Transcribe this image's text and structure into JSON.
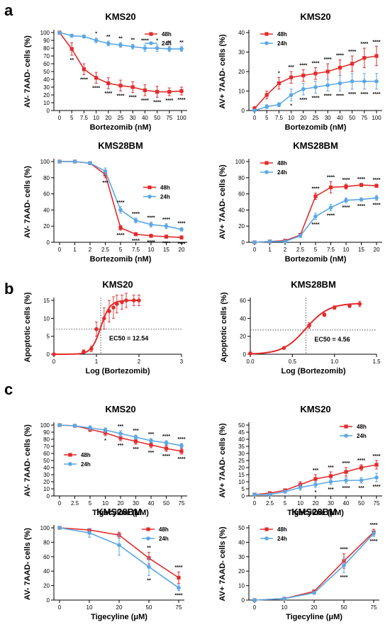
{
  "panel_labels": [
    "a",
    "b",
    "c"
  ],
  "colors": {
    "red": "#e32b2b",
    "blue": "#5aa7e6"
  },
  "chart_data": [
    {
      "id": "a1",
      "type": "line",
      "title": "KMS20",
      "xlabel": "Bortezomib (nM)",
      "ylabel": "AV- 7AAD- cells (%)",
      "categories": [
        "0",
        "5",
        "7.5",
        "10",
        "20",
        "25",
        "30",
        "40",
        "50",
        "75",
        "100"
      ],
      "ylim": [
        0,
        100
      ],
      "yticks": [
        0,
        10,
        20,
        30,
        40,
        50,
        60,
        70,
        80,
        90,
        100
      ],
      "legend": "top-right",
      "series": [
        {
          "name": "48h",
          "color": "red",
          "values": [
            100,
            79,
            53,
            42,
            35,
            32,
            30,
            26,
            24,
            24,
            25
          ],
          "err": [
            2,
            8,
            7,
            7,
            7,
            7,
            7,
            7,
            7,
            5,
            5
          ],
          "sig": [
            "",
            "**",
            "****",
            "****",
            "****",
            "****",
            "****",
            "****",
            "****",
            "****",
            "****"
          ],
          "sig_pos": "below"
        },
        {
          "name": "24h",
          "color": "blue",
          "values": [
            100,
            96,
            95,
            90,
            86,
            84,
            82,
            80,
            80,
            79,
            79
          ],
          "err": [
            1,
            2,
            2,
            3,
            3,
            3,
            3,
            4,
            4,
            3,
            3
          ],
          "sig": [
            "",
            "",
            "",
            "*",
            "**",
            "**",
            "**",
            "****",
            "*",
            "**",
            "**"
          ],
          "sig_pos": "above"
        }
      ]
    },
    {
      "id": "a2",
      "type": "line",
      "title": "KMS20",
      "xlabel": "Bortezomib (nM)",
      "ylabel": "AV+ 7AAD- cells (%)",
      "categories": [
        "0",
        "5",
        "7.5",
        "10",
        "20",
        "25",
        "30",
        "40",
        "50",
        "75",
        "100"
      ],
      "ylim": [
        0,
        40
      ],
      "yticks": [
        0,
        10,
        20,
        30,
        40
      ],
      "legend": "top-left",
      "series": [
        {
          "name": "48h",
          "color": "red",
          "values": [
            1,
            8,
            14,
            17,
            18,
            19,
            20,
            22,
            24,
            27,
            28
          ],
          "err": [
            1,
            2,
            3,
            3,
            3,
            3,
            4,
            4,
            4,
            5,
            5
          ],
          "sig": [
            "",
            "",
            "*",
            "***",
            "****",
            "****",
            "****",
            "****",
            "****",
            "****",
            "****"
          ],
          "sig_pos": "above"
        },
        {
          "name": "24h",
          "color": "blue",
          "values": [
            0,
            2,
            3,
            8,
            11,
            12,
            13,
            14,
            15,
            15,
            15
          ],
          "err": [
            0,
            1,
            1,
            3,
            3,
            3,
            3,
            4,
            4,
            4,
            4
          ],
          "sig": [
            "",
            "",
            "",
            "*",
            "****",
            "****",
            "****",
            "****",
            "****",
            "****",
            "****"
          ],
          "sig_pos": "below"
        }
      ]
    },
    {
      "id": "a3",
      "type": "line",
      "title": "KMS28BM",
      "xlabel": "Bortezomib (nM)",
      "ylabel": "AV- 7AAD- cells (%)",
      "categories": [
        "0",
        "1",
        "2",
        "2.5",
        "5",
        "7.5",
        "10",
        "15",
        "20"
      ],
      "ylim": [
        0,
        100
      ],
      "yticks": [
        0,
        20,
        40,
        60,
        80,
        100
      ],
      "legend": "mid-right",
      "series": [
        {
          "name": "48h",
          "color": "red",
          "values": [
            100,
            100,
            98,
            84,
            18,
            10,
            8,
            7,
            6
          ],
          "err": [
            1,
            1,
            2,
            4,
            3,
            2,
            2,
            2,
            2
          ],
          "sig": [
            "",
            "",
            "",
            "***",
            "****",
            "****",
            "****",
            "****",
            "****"
          ],
          "sig_pos": "below"
        },
        {
          "name": "24h",
          "color": "blue",
          "values": [
            100,
            100,
            98,
            88,
            40,
            27,
            22,
            20,
            16
          ],
          "err": [
            1,
            1,
            2,
            4,
            4,
            3,
            3,
            3,
            2
          ],
          "sig": [
            "",
            "",
            "",
            "",
            "****",
            "****",
            "****",
            "****",
            "****"
          ],
          "sig_pos": "above"
        }
      ]
    },
    {
      "id": "a4",
      "type": "line",
      "title": "KMS28BM",
      "xlabel": "Bortezomib (nM)",
      "ylabel": "AV+ 7AAD- cells (%)",
      "categories": [
        "0",
        "1",
        "2",
        "2.5",
        "5",
        "7.5",
        "10",
        "15",
        "20"
      ],
      "ylim": [
        0,
        100
      ],
      "yticks": [
        0,
        20,
        40,
        60,
        80,
        100
      ],
      "legend": "top-left",
      "series": [
        {
          "name": "48h",
          "color": "red",
          "values": [
            0,
            1,
            2,
            9,
            57,
            68,
            69,
            71,
            70
          ],
          "err": [
            0,
            1,
            1,
            2,
            4,
            7,
            3,
            2,
            2
          ],
          "sig": [
            "",
            "",
            "",
            "",
            "****",
            "****",
            "****",
            "****",
            "****"
          ],
          "sig_pos": "above"
        },
        {
          "name": "24h",
          "color": "blue",
          "values": [
            0,
            1,
            1,
            8,
            32,
            43,
            52,
            53,
            55
          ],
          "err": [
            0,
            0,
            1,
            2,
            4,
            4,
            3,
            2,
            3
          ],
          "sig": [
            "",
            "",
            "",
            "",
            "****",
            "****",
            "****",
            "****",
            "****"
          ],
          "sig_pos": "below"
        }
      ]
    },
    {
      "id": "b1",
      "type": "scatter",
      "title": "KMS20",
      "xlabel": "Log (Bortezomib)",
      "ylabel": "Apoptotic cells (%)",
      "xlim": [
        0,
        3
      ],
      "xticks": [
        0,
        1,
        2,
        3
      ],
      "ylim": [
        0,
        15
      ],
      "yticks": [
        0,
        5,
        10,
        15
      ],
      "points": [
        [
          0,
          0
        ],
        [
          0.7,
          0.7
        ],
        [
          0.88,
          1.5
        ],
        [
          1,
          7
        ],
        [
          1.18,
          10
        ],
        [
          1.3,
          12
        ],
        [
          1.4,
          13
        ],
        [
          1.48,
          14
        ],
        [
          1.6,
          14.5
        ],
        [
          1.7,
          15
        ],
        [
          1.88,
          15
        ],
        [
          2,
          15
        ]
      ],
      "err": [
        0.3,
        0.5,
        0.8,
        2,
        3,
        3,
        3,
        2.5,
        2,
        2,
        1.5,
        1.5
      ],
      "fit": {
        "ec50": 1.1,
        "top": 15,
        "bottom": 0,
        "hill": 4
      },
      "ref_x": 1.1,
      "ref_y": 7,
      "annotation": "EC50 = 12.54"
    },
    {
      "id": "b2",
      "type": "scatter",
      "title": "KMS28BM",
      "xlabel": "Log (Bortezomib)",
      "ylabel": "Apoptotic cells (%)",
      "xlim": [
        0,
        1.5
      ],
      "xticks": [
        0.0,
        0.5,
        1.0,
        1.5
      ],
      "ylim": [
        0,
        60
      ],
      "yticks": [
        0,
        20,
        40,
        60
      ],
      "points": [
        [
          0,
          1
        ],
        [
          0.4,
          7
        ],
        [
          0.7,
          32
        ],
        [
          0.88,
          44
        ],
        [
          1,
          52
        ],
        [
          1.18,
          54
        ],
        [
          1.3,
          56
        ]
      ],
      "err": [
        0.5,
        1,
        3,
        2,
        2,
        2,
        3
      ],
      "fit": {
        "ec50": 0.66,
        "top": 57,
        "bottom": 0,
        "hill": 3.2
      },
      "ref_x": 0.66,
      "ref_y": 27,
      "annotation": "EC50 = 4.56"
    },
    {
      "id": "c1",
      "type": "line",
      "title": "KMS20",
      "xlabel": "Tigecyline (μM)",
      "ylabel": "AV- 7AAD- cells (%)",
      "categories": [
        "0",
        "2.5",
        "5",
        "10",
        "20",
        "30",
        "40",
        "50",
        "75"
      ],
      "ylim": [
        0,
        100
      ],
      "yticks": [
        0,
        10,
        20,
        30,
        40,
        50,
        60,
        70,
        80,
        90,
        100
      ],
      "legend": "mid-left",
      "series": [
        {
          "name": "48h",
          "color": "red",
          "values": [
            100,
            99,
            94,
            89,
            82,
            77,
            72,
            67,
            63
          ],
          "err": [
            1,
            2,
            3,
            4,
            4,
            4,
            4,
            4,
            4
          ],
          "sig": [
            "",
            "",
            "",
            "*",
            "***",
            "***",
            "***",
            "****",
            "****"
          ],
          "sig_pos": "below"
        },
        {
          "name": "24h",
          "color": "blue",
          "values": [
            100,
            99,
            96,
            93,
            88,
            83,
            78,
            75,
            71
          ],
          "err": [
            1,
            2,
            3,
            3,
            4,
            3,
            3,
            3,
            3
          ],
          "sig": [
            "",
            "",
            "",
            "",
            "***",
            "***",
            "***",
            "****",
            "****"
          ],
          "sig_pos": "above"
        }
      ]
    },
    {
      "id": "c2",
      "type": "line",
      "title": "KMS20",
      "xlabel": "Tigecyline (μM)",
      "ylabel": "AV+ 7AAD- cells (%)",
      "categories": [
        "0",
        "2.5",
        "5",
        "10",
        "20",
        "30",
        "40",
        "50",
        "75"
      ],
      "ylim": [
        0,
        50
      ],
      "yticks": [
        0,
        5,
        10,
        15,
        20,
        25,
        30,
        35,
        40,
        45,
        50
      ],
      "legend": "top-right",
      "series": [
        {
          "name": "48h",
          "color": "red",
          "values": [
            1,
            2,
            4,
            8,
            12,
            14,
            17,
            20,
            22
          ],
          "err": [
            0,
            1,
            1,
            2,
            3,
            3,
            3,
            2,
            3
          ],
          "sig": [
            "",
            "",
            "",
            "",
            "***",
            "***",
            "****",
            "****",
            "****"
          ],
          "sig_pos": "above"
        },
        {
          "name": "24h",
          "color": "blue",
          "values": [
            1,
            1,
            3,
            6,
            8,
            10,
            11,
            11,
            13
          ],
          "err": [
            0,
            1,
            1,
            2,
            2,
            2,
            2,
            2,
            3
          ],
          "sig": [
            "",
            "",
            "",
            "",
            "*",
            "***",
            "****",
            "***",
            "****"
          ],
          "sig_pos": "below"
        }
      ]
    },
    {
      "id": "c3",
      "type": "line",
      "title": "KMS28BM",
      "xlabel": "Tigecyline (μM)",
      "ylabel": "AV- 7AAD- cells (%)",
      "categories": [
        "0",
        "10",
        "20",
        "50",
        "75"
      ],
      "ylim": [
        0,
        100
      ],
      "yticks": [
        0,
        20,
        40,
        60,
        80,
        100
      ],
      "legend": "top-right",
      "series": [
        {
          "name": "48h",
          "color": "red",
          "values": [
            100,
            97,
            90,
            58,
            31
          ],
          "err": [
            1,
            2,
            4,
            8,
            8
          ],
          "sig": [
            "",
            "",
            "",
            "**",
            "****"
          ],
          "sig_pos": "above"
        },
        {
          "name": "24h",
          "color": "blue",
          "values": [
            100,
            93,
            76,
            46,
            17
          ],
          "err": [
            1,
            6,
            14,
            12,
            4
          ],
          "sig": [
            "",
            "",
            "",
            "**",
            "****"
          ],
          "sig_pos": "below"
        }
      ]
    },
    {
      "id": "c4",
      "type": "line",
      "title": "KMS28BM",
      "xlabel": "Tigecyline (μM)",
      "ylabel": "AV+ 7AAD- cells (%)",
      "categories": [
        "0",
        "10",
        "20",
        "50",
        "75"
      ],
      "ylim": [
        0,
        50
      ],
      "yticks": [
        0,
        10,
        20,
        30,
        40,
        50
      ],
      "legend": "top-left",
      "series": [
        {
          "name": "48h",
          "color": "red",
          "values": [
            0,
            1,
            6,
            27,
            47
          ],
          "err": [
            0,
            0,
            1,
            5,
            2
          ],
          "sig": [
            "",
            "",
            "",
            "****",
            "****"
          ],
          "sig_pos": "above"
        },
        {
          "name": "24h",
          "color": "blue",
          "values": [
            0,
            1,
            5,
            24,
            46
          ],
          "err": [
            0,
            0,
            1,
            5,
            2
          ],
          "sig": [
            "",
            "",
            "",
            "****",
            "****"
          ],
          "sig_pos": "below"
        }
      ]
    }
  ]
}
